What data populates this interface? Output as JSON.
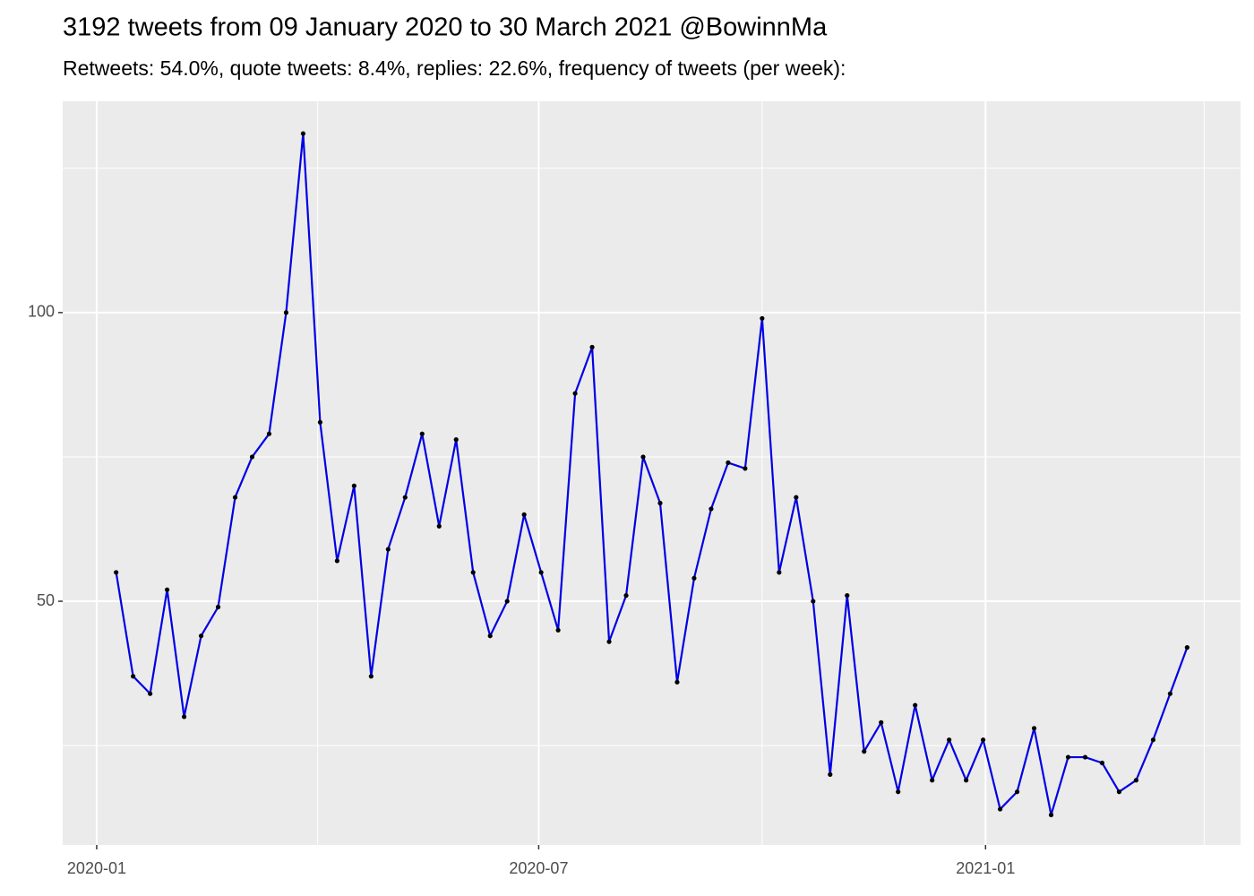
{
  "chart_data": {
    "type": "line",
    "title": "3192 tweets from 09 January 2020 to 30 March 2021 @BowinnMa",
    "subtitle": "Retweets: 54.0%, quote tweets: 8.4%, replies: 22.6%, frequency of tweets (per week):",
    "x": [
      "2020-01-09",
      "2020-01-16",
      "2020-01-23",
      "2020-01-30",
      "2020-02-06",
      "2020-02-13",
      "2020-02-20",
      "2020-02-27",
      "2020-03-05",
      "2020-03-12",
      "2020-03-19",
      "2020-03-26",
      "2020-04-02",
      "2020-04-09",
      "2020-04-16",
      "2020-04-23",
      "2020-04-30",
      "2020-05-07",
      "2020-05-14",
      "2020-05-21",
      "2020-05-28",
      "2020-06-04",
      "2020-06-11",
      "2020-06-18",
      "2020-06-25",
      "2020-07-02",
      "2020-07-09",
      "2020-07-16",
      "2020-07-23",
      "2020-07-30",
      "2020-08-06",
      "2020-08-13",
      "2020-08-20",
      "2020-08-27",
      "2020-09-03",
      "2020-09-10",
      "2020-09-17",
      "2020-09-24",
      "2020-10-01",
      "2020-10-08",
      "2020-10-15",
      "2020-10-22",
      "2020-10-29",
      "2020-11-05",
      "2020-11-12",
      "2020-11-19",
      "2020-11-26",
      "2020-12-03",
      "2020-12-10",
      "2020-12-17",
      "2020-12-24",
      "2020-12-31",
      "2021-01-07",
      "2021-01-14",
      "2021-01-21",
      "2021-01-28",
      "2021-02-04",
      "2021-02-11",
      "2021-02-18",
      "2021-02-25",
      "2021-03-04",
      "2021-03-11",
      "2021-03-18",
      "2021-03-25"
    ],
    "values": [
      55,
      37,
      34,
      52,
      30,
      44,
      49,
      68,
      75,
      79,
      100,
      131,
      81,
      57,
      70,
      37,
      59,
      68,
      79,
      63,
      78,
      55,
      44,
      50,
      65,
      55,
      45,
      86,
      94,
      43,
      51,
      75,
      67,
      36,
      54,
      66,
      74,
      73,
      99,
      55,
      68,
      50,
      20,
      51,
      24,
      29,
      17,
      32,
      19,
      26,
      19,
      26,
      14,
      17,
      28,
      13,
      23,
      23,
      22,
      17,
      19,
      26,
      34,
      42
    ],
    "line_color": "#0000e6",
    "point_color": "#000000",
    "xlim": [
      "2019-12-18",
      "2021-04-16"
    ],
    "xticks": [
      {
        "value": "2020-01-01",
        "label": "2020-01"
      },
      {
        "value": "2020-07-01",
        "label": "2020-07"
      },
      {
        "value": "2021-01-01",
        "label": "2021-01"
      }
    ],
    "minor_xticks": [
      "2020-04-01",
      "2020-10-01",
      "2021-04-01"
    ],
    "ylim": [
      7.8,
      136.6
    ],
    "yticks": [
      50,
      100
    ],
    "minor_yticks": [
      25,
      75,
      125
    ],
    "grid": true
  }
}
